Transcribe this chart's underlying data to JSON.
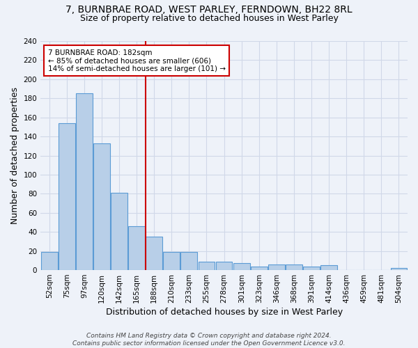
{
  "title_line1": "7, BURNBRAE ROAD, WEST PARLEY, FERNDOWN, BH22 8RL",
  "title_line2": "Size of property relative to detached houses in West Parley",
  "xlabel": "Distribution of detached houses by size in West Parley",
  "ylabel": "Number of detached properties",
  "categories": [
    "52sqm",
    "75sqm",
    "97sqm",
    "120sqm",
    "142sqm",
    "165sqm",
    "188sqm",
    "210sqm",
    "233sqm",
    "255sqm",
    "278sqm",
    "301sqm",
    "323sqm",
    "346sqm",
    "368sqm",
    "391sqm",
    "414sqm",
    "436sqm",
    "459sqm",
    "481sqm",
    "504sqm"
  ],
  "values": [
    19,
    154,
    185,
    133,
    81,
    46,
    35,
    19,
    19,
    9,
    9,
    7,
    4,
    6,
    6,
    4,
    5,
    0,
    0,
    0,
    2
  ],
  "bar_color": "#b8cfe8",
  "bar_edge_color": "#5b9bd5",
  "vline_pos": 5.5,
  "vline_color": "#cc0000",
  "annotation_line1": "7 BURNBRAE ROAD: 182sqm",
  "annotation_line2": "← 85% of detached houses are smaller (606)",
  "annotation_line3": "14% of semi-detached houses are larger (101) →",
  "annotation_box_color": "#ffffff",
  "annotation_box_edge": "#cc0000",
  "ylim": [
    0,
    240
  ],
  "yticks": [
    0,
    20,
    40,
    60,
    80,
    100,
    120,
    140,
    160,
    180,
    200,
    220,
    240
  ],
  "footer": "Contains HM Land Registry data © Crown copyright and database right 2024.\nContains public sector information licensed under the Open Government Licence v3.0.",
  "background_color": "#eef2f9",
  "grid_color": "#d0d8e8",
  "title_fontsize": 10,
  "subtitle_fontsize": 9,
  "tick_fontsize": 7.5,
  "label_fontsize": 9
}
